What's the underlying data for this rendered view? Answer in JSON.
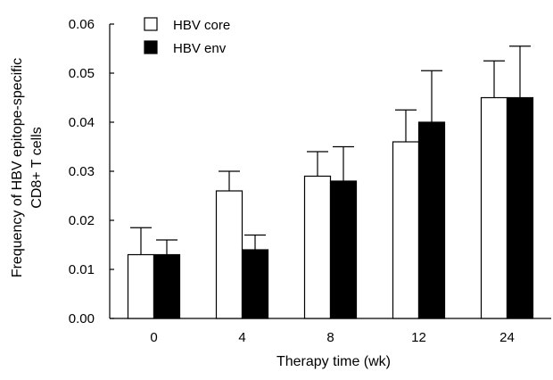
{
  "chart_data": {
    "type": "bar",
    "categories": [
      "0",
      "4",
      "8",
      "12",
      "24"
    ],
    "series": [
      {
        "name": "HBV core",
        "values": [
          0.013,
          0.026,
          0.029,
          0.036,
          0.045
        ],
        "error": [
          0.0055,
          0.004,
          0.005,
          0.0065,
          0.0075
        ],
        "fill": "#ffffff"
      },
      {
        "name": "HBV env",
        "values": [
          0.013,
          0.014,
          0.028,
          0.04,
          0.045
        ],
        "error": [
          0.003,
          0.003,
          0.007,
          0.0105,
          0.0105
        ],
        "fill": "#000000"
      }
    ],
    "title": "",
    "xlabel": "Therapy time (wk)",
    "ylabel_lines": [
      "Frequency of HBV epitope-specific",
      "CD8+ T cells"
    ],
    "ylim": [
      0,
      0.06
    ],
    "yticks": [
      "0.00",
      "0.01",
      "0.02",
      "0.03",
      "0.04",
      "0.05",
      "0.06"
    ],
    "grid": false,
    "legend_position": "top-left"
  }
}
